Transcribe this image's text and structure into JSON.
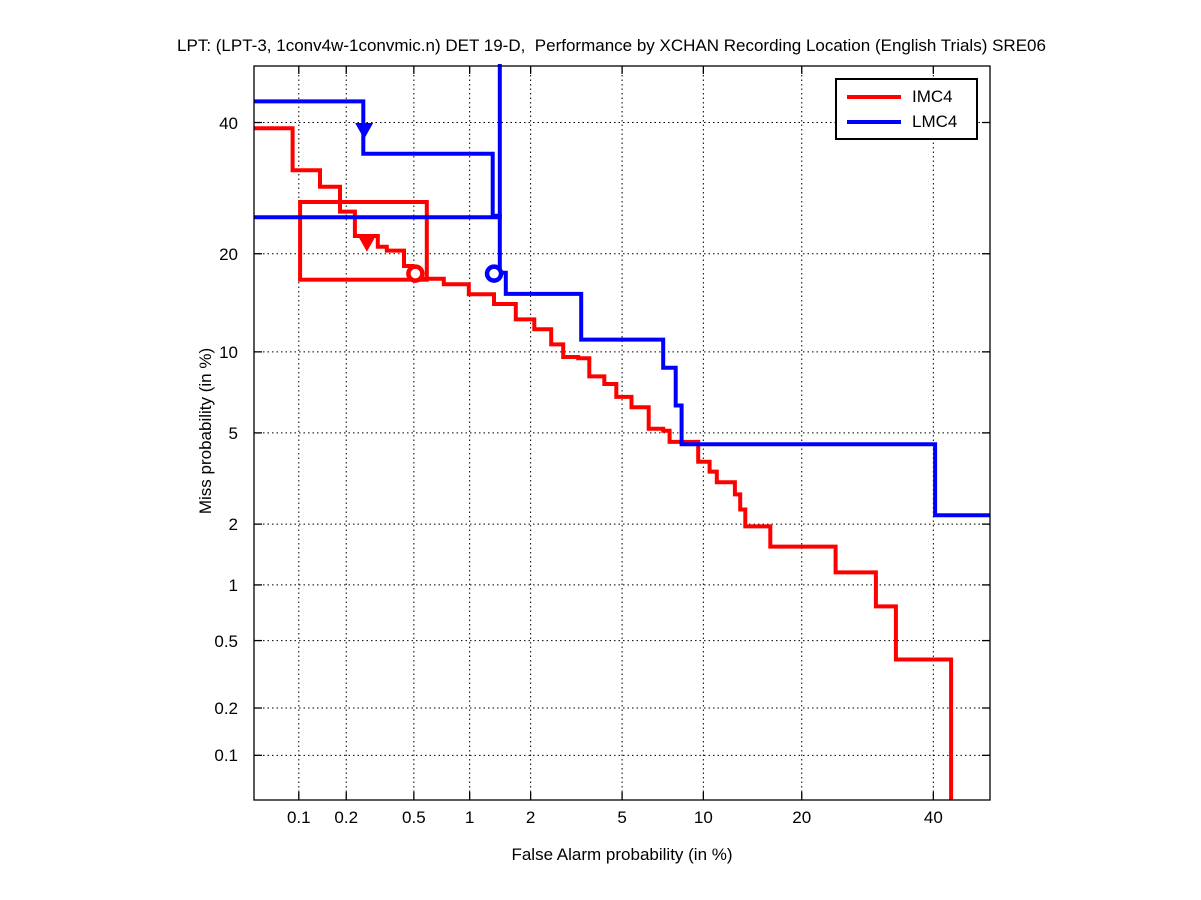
{
  "chart_data": {
    "type": "line",
    "chart_kind": "DET curve (step plot on probit / normal-deviate scales)",
    "title": "LPT: (LPT-3, 1conv4w-1convmic.n) DET 19-D,  Performance by XCHAN Recording Location (English Trials) SRE06",
    "xlabel": "False Alarm probability (in %)",
    "ylabel": "Miss probability (in %)",
    "xlim": [
      0.05,
      50
    ],
    "ylim": [
      0.05,
      50
    ],
    "x_ticks": [
      0.1,
      0.2,
      0.5,
      1,
      2,
      5,
      10,
      20,
      40
    ],
    "x_tick_labels": [
      "0.1",
      "0.2",
      "0.5",
      "1",
      "2",
      "5",
      "10",
      "20",
      "40"
    ],
    "y_ticks": [
      40,
      20,
      10,
      5,
      2,
      1,
      0.5,
      0.2,
      0.1
    ],
    "y_tick_labels": [
      "40",
      "20",
      "10",
      "5",
      "2",
      "1",
      "0.5",
      "0.2",
      "0.1"
    ],
    "grid": "dotted",
    "axes_color": "#000000",
    "background": "#ffffff",
    "legend": {
      "position": "upper-right",
      "entries": [
        "IMC4",
        "LMC4"
      ]
    },
    "series": [
      {
        "name": "IMC4",
        "color": "#ff0000",
        "step_points": [
          [
            0.05,
            39.0
          ],
          [
            0.091,
            32.0
          ],
          [
            0.137,
            29.4
          ],
          [
            0.183,
            25.7
          ],
          [
            0.226,
            22.3
          ],
          [
            0.31,
            20.9
          ],
          [
            0.35,
            20.4
          ],
          [
            0.44,
            18.5
          ],
          [
            0.49,
            17.5
          ],
          [
            0.51,
            17.0
          ],
          [
            0.73,
            16.4
          ],
          [
            0.99,
            15.3
          ],
          [
            1.33,
            14.3
          ],
          [
            1.7,
            12.8
          ],
          [
            2.08,
            11.9
          ],
          [
            2.49,
            10.6
          ],
          [
            2.82,
            9.6
          ],
          [
            3.28,
            9.5
          ],
          [
            3.66,
            8.2
          ],
          [
            4.23,
            7.7
          ],
          [
            4.74,
            6.9
          ],
          [
            5.45,
            6.3
          ],
          [
            6.35,
            5.2
          ],
          [
            7.2,
            5.1
          ],
          [
            7.6,
            4.6
          ],
          [
            9.6,
            3.8
          ],
          [
            10.5,
            3.45
          ],
          [
            11.1,
            3.1
          ],
          [
            12.7,
            2.74
          ],
          [
            13.2,
            2.34
          ],
          [
            13.7,
            1.95
          ],
          [
            16.3,
            1.56
          ],
          [
            24.5,
            1.16
          ],
          [
            30.5,
            0.77
          ],
          [
            33.7,
            0.39
          ],
          [
            43.1,
            0.05
          ]
        ],
        "markers": [
          {
            "shape": "triangle-down",
            "fa": 0.267,
            "miss": 21.4
          },
          {
            "shape": "circle",
            "fa": 0.51,
            "miss": 17.6
          }
        ],
        "highlight_box": {
          "fa_min": 0.102,
          "fa_max": 0.59,
          "miss_min": 16.9,
          "miss_max": 27.1
        }
      },
      {
        "name": "LMC4",
        "color": "#0000ff",
        "step_points": [
          [
            0.05,
            43.7
          ],
          [
            0.254,
            34.7
          ],
          [
            1.31,
            25.1
          ],
          [
            1.42,
            17.7
          ],
          [
            1.52,
            15.35
          ],
          [
            3.38,
            11.0
          ],
          [
            7.2,
            8.8
          ],
          [
            8.0,
            6.4
          ],
          [
            8.4,
            4.5
          ],
          [
            40.3,
            2.2
          ],
          [
            50,
            2.2
          ]
        ],
        "markers": [
          {
            "shape": "triangle-down",
            "fa": 0.257,
            "miss": 38.7
          },
          {
            "shape": "circle",
            "fa": 1.33,
            "miss": 17.6
          }
        ],
        "highlight_box": {
          "fa_max": 1.42,
          "miss_min": 24.9,
          "clipped": "left and top edges lie beyond the axis limits"
        }
      }
    ]
  }
}
